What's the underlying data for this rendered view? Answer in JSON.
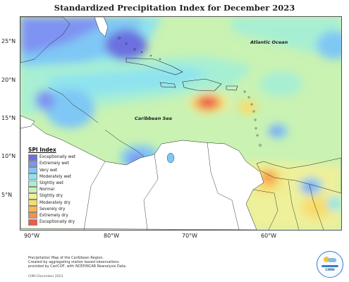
{
  "title": "Standardized Precipitation Index for December 2023",
  "map": {
    "lat_labels": [
      "25°N",
      "20°N",
      "15°N",
      "10°N",
      "5°N"
    ],
    "lon_labels": [
      "90°W",
      "80°W",
      "70°W",
      "60°W"
    ],
    "ocean_labels": {
      "atlantic": "Atlantic Ocean",
      "caribbean": "Caribbean Sea"
    }
  },
  "legend": {
    "title": "SPI Index",
    "items": [
      {
        "label": "Exceptionally wet",
        "color": "#6c6fe0"
      },
      {
        "label": "Extremely wet",
        "color": "#7f93f2"
      },
      {
        "label": "Very wet",
        "color": "#7fc7f5"
      },
      {
        "label": "Moderately wet",
        "color": "#8fe3ee"
      },
      {
        "label": "Slightly wet",
        "color": "#a7efd3"
      },
      {
        "label": "Normal",
        "color": "#c9f2b3"
      },
      {
        "label": "Slightly dry",
        "color": "#eef09a"
      },
      {
        "label": "Moderately dry",
        "color": "#f7dd6d"
      },
      {
        "label": "Severely dry",
        "color": "#f6b84f"
      },
      {
        "label": "Extremely dry",
        "color": "#f4904a"
      },
      {
        "label": "Exceptionally dry",
        "color": "#ec5a4a"
      }
    ]
  },
  "footnote": {
    "lines": [
      "Precipitation Map of the Caribbean Region.",
      "Created by aggregating station based observations",
      "provided by CariCOF, with NCEP/NCAR Reanalysis Data."
    ],
    "credit": "CIMH December 2023"
  },
  "logo": {
    "text": "CIMH"
  }
}
